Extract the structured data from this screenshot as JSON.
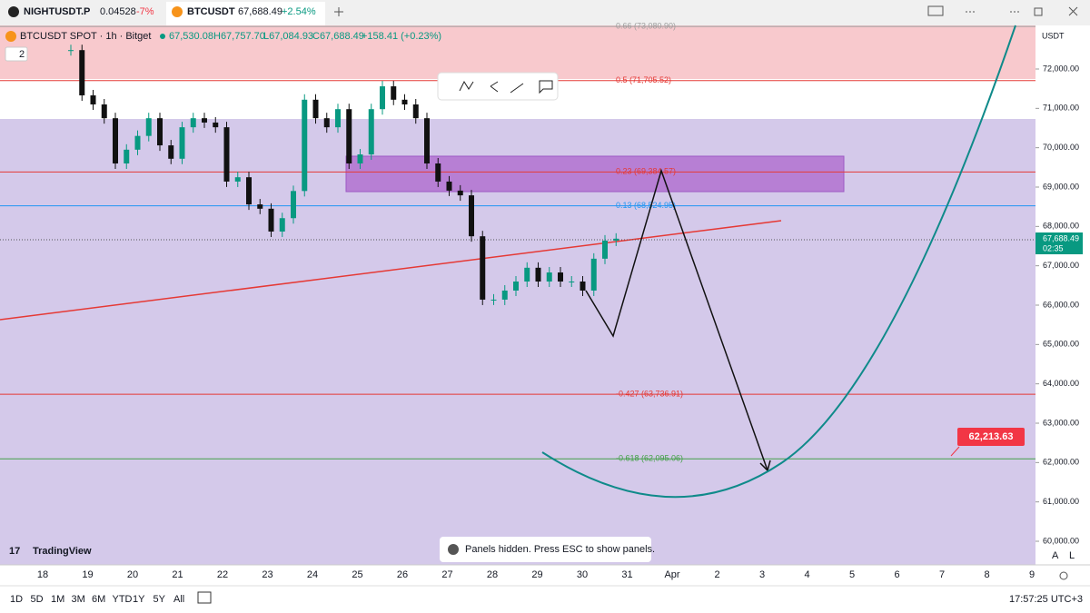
{
  "tabs": [
    {
      "symbol": "NIGHTUSDT.P",
      "price": "0.04528",
      "change": "-7%"
    },
    {
      "symbol": "BTCUSDT",
      "price": "67,688.49",
      "change": "+2.54%"
    }
  ],
  "legend": {
    "title": "BTCUSDT SPOT · 1h · Bitget",
    "open": "67,530.08",
    "high": "H67,757.70",
    "low": "L67,084.93",
    "close": "C67,688.49",
    "change": "+158.41 (+0.23%)"
  },
  "indicator_count": "2",
  "currency": "USDT",
  "price_axis": [
    {
      "value": 72000,
      "label": "72,000.00"
    },
    {
      "value": 71000,
      "label": "71,000.00"
    },
    {
      "value": 70000,
      "label": "70,000.00"
    },
    {
      "value": 69000,
      "label": "69,000.00"
    },
    {
      "value": 68000,
      "label": "68,000.00"
    },
    {
      "value": 67000,
      "label": "67,000.00"
    },
    {
      "value": 66000,
      "label": "66,000.00"
    },
    {
      "value": 65000,
      "label": "65,000.00"
    },
    {
      "value": 64000,
      "label": "64,000.00"
    },
    {
      "value": 63000,
      "label": "63,000.00"
    },
    {
      "value": 62000,
      "label": "62,000.00"
    },
    {
      "value": 61000,
      "label": "61,000.00"
    },
    {
      "value": 60000,
      "label": "60,000.00"
    }
  ],
  "last_price": {
    "value": 67688.49,
    "label": "67,688.49",
    "countdown": "02:35"
  },
  "fib_levels": [
    {
      "label": "0.66 (73,080.90)",
      "price": 73080.9,
      "color": "#9e9e9e"
    },
    {
      "label": "0.5 (71,705.52)",
      "price": 71705.52,
      "color": "#e53935"
    },
    {
      "label": "0.23 (69,384.57)",
      "price": 69384.57,
      "color": "#e53935"
    },
    {
      "label": "0.13 (68,524.95)",
      "price": 68524.95,
      "color": "#2196f3"
    },
    {
      "label": "-0.427 (63,736.91)",
      "price": 63736.91,
      "color": "#e53935"
    },
    {
      "label": "-0.618 (62,095.06)",
      "price": 62095.06,
      "color": "#43a047"
    }
  ],
  "closes": [
    72480,
    71330,
    71100,
    70750,
    69600,
    69950,
    70300,
    70750,
    70060,
    69720,
    70520,
    70750,
    70640,
    70520,
    69140,
    69250,
    68560,
    68450,
    67870,
    68210,
    68900,
    71220,
    70750,
    70520,
    70980,
    69600,
    69830,
    70980,
    71560,
    71220,
    71100,
    70750,
    69600,
    69140,
    68910,
    68790,
    67750,
    66140,
    66140,
    66370,
    66600,
    66950,
    66600,
    66830,
    66600,
    66600,
    66370,
    67180,
    67640,
    67688.49
  ],
  "target_label": "62,213.63",
  "time_axis": [
    "18",
    "19",
    "20",
    "21",
    "22",
    "23",
    "24",
    "25",
    "26",
    "27",
    "28",
    "29",
    "30",
    "31",
    "Apr",
    "2",
    "3",
    "4",
    "5",
    "6",
    "7",
    "8",
    "9"
  ],
  "branding": "TradingView",
  "toast": "Panels hidden. Press ESC to show panels.",
  "ranges": [
    "1D",
    "5D",
    "1M",
    "3M",
    "6M",
    "YTD",
    "1Y",
    "5Y",
    "All"
  ],
  "scale_buttons": [
    "A",
    "L"
  ],
  "clock": "17:57:25 UTC+3"
}
